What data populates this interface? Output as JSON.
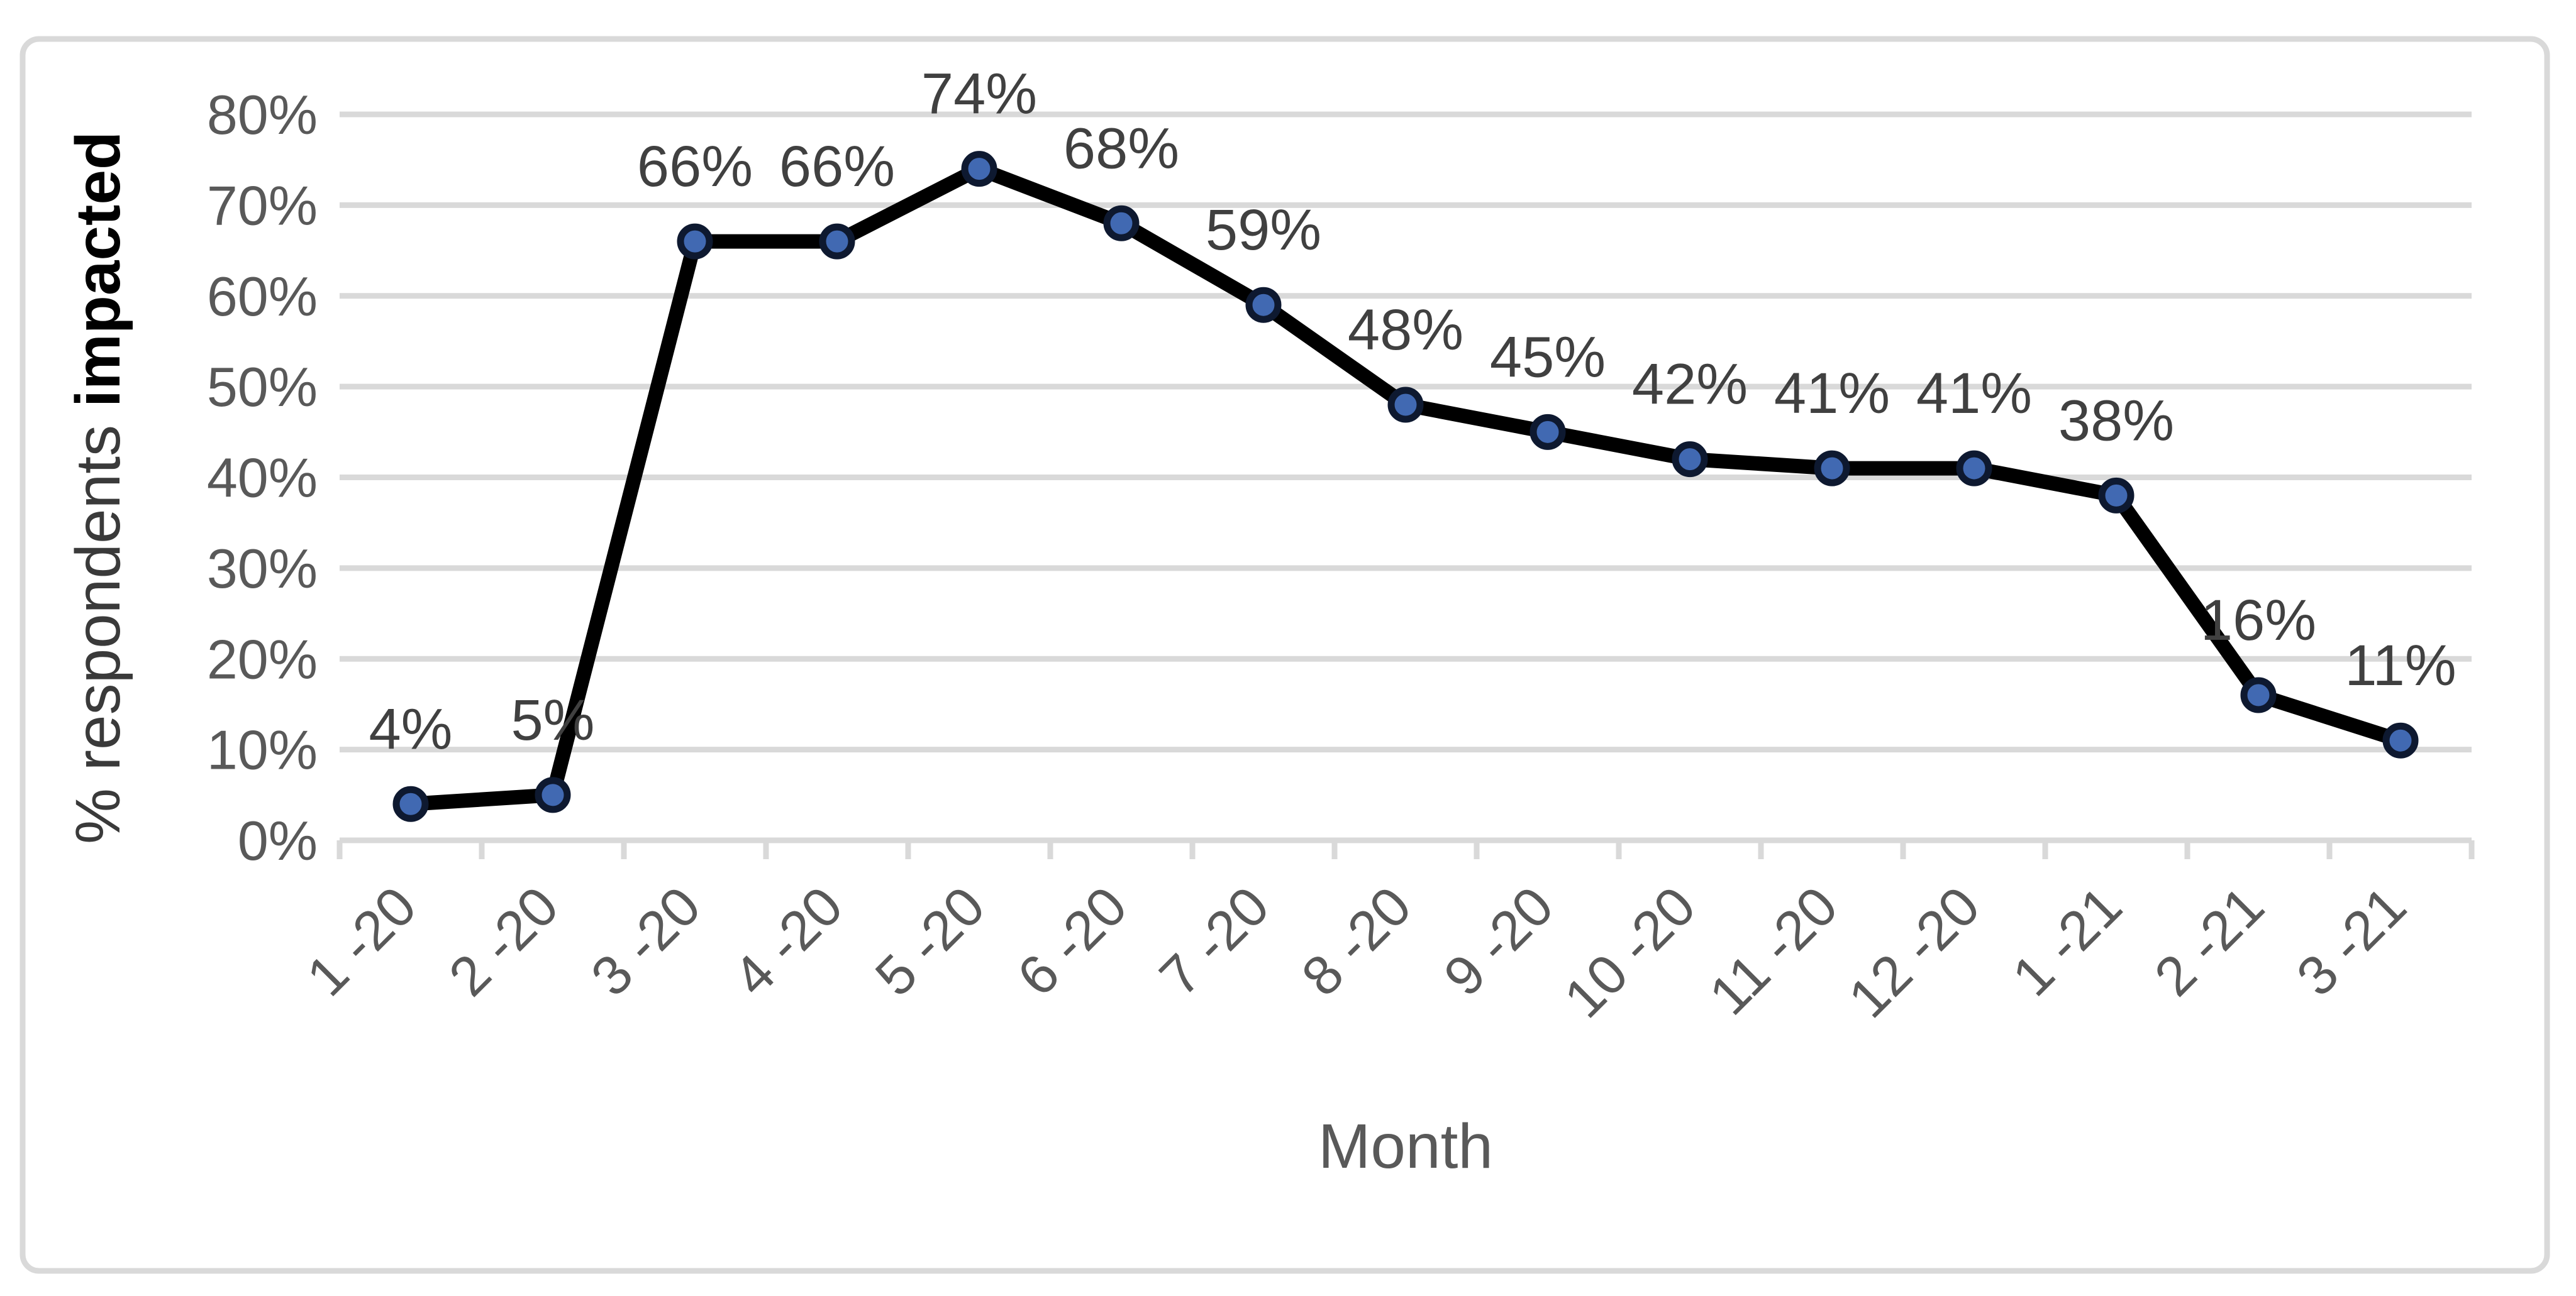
{
  "chart_data": {
    "type": "line",
    "title": "",
    "xlabel": "Month",
    "ylabel_regular": "% respondents",
    "ylabel_bold": "impacted",
    "categories": [
      "1 -20",
      "2 -20",
      "3 -20",
      "4 -20",
      "5 -20",
      "6 -20",
      "7 -20",
      "8 -20",
      "9 -20",
      "10 -20",
      "11 -20",
      "12 -20",
      "1 -21",
      "2 -21",
      "3 -21"
    ],
    "values": [
      4,
      5,
      66,
      66,
      74,
      68,
      59,
      48,
      45,
      42,
      41,
      41,
      38,
      16,
      11
    ],
    "data_labels": [
      "4%",
      "5%",
      "66%",
      "66%",
      "74%",
      "68%",
      "59%",
      "48%",
      "45%",
      "42%",
      "41%",
      "41%",
      "38%",
      "16%",
      "11%"
    ],
    "ylim": [
      0,
      80
    ],
    "ytick_step": 10,
    "ytick_labels": [
      "0%",
      "10%",
      "20%",
      "30%",
      "40%",
      "50%",
      "60%",
      "70%",
      "80%"
    ],
    "grid": true,
    "legend": "none",
    "marker": "circle",
    "colors": {
      "line": "#000000",
      "marker_fill": "#4169B2",
      "marker_border": "#0E1930",
      "gridline": "#D9D9D9",
      "axis": "#D9D9D9",
      "tick_label": "#595959",
      "data_label": "#404040",
      "axis_title": "#595959",
      "ylabel_regular_color": "#3A3A3A",
      "ylabel_bold_color": "#000000",
      "frame_border": "#D9D9D9",
      "background": "#FFFFFF"
    }
  }
}
